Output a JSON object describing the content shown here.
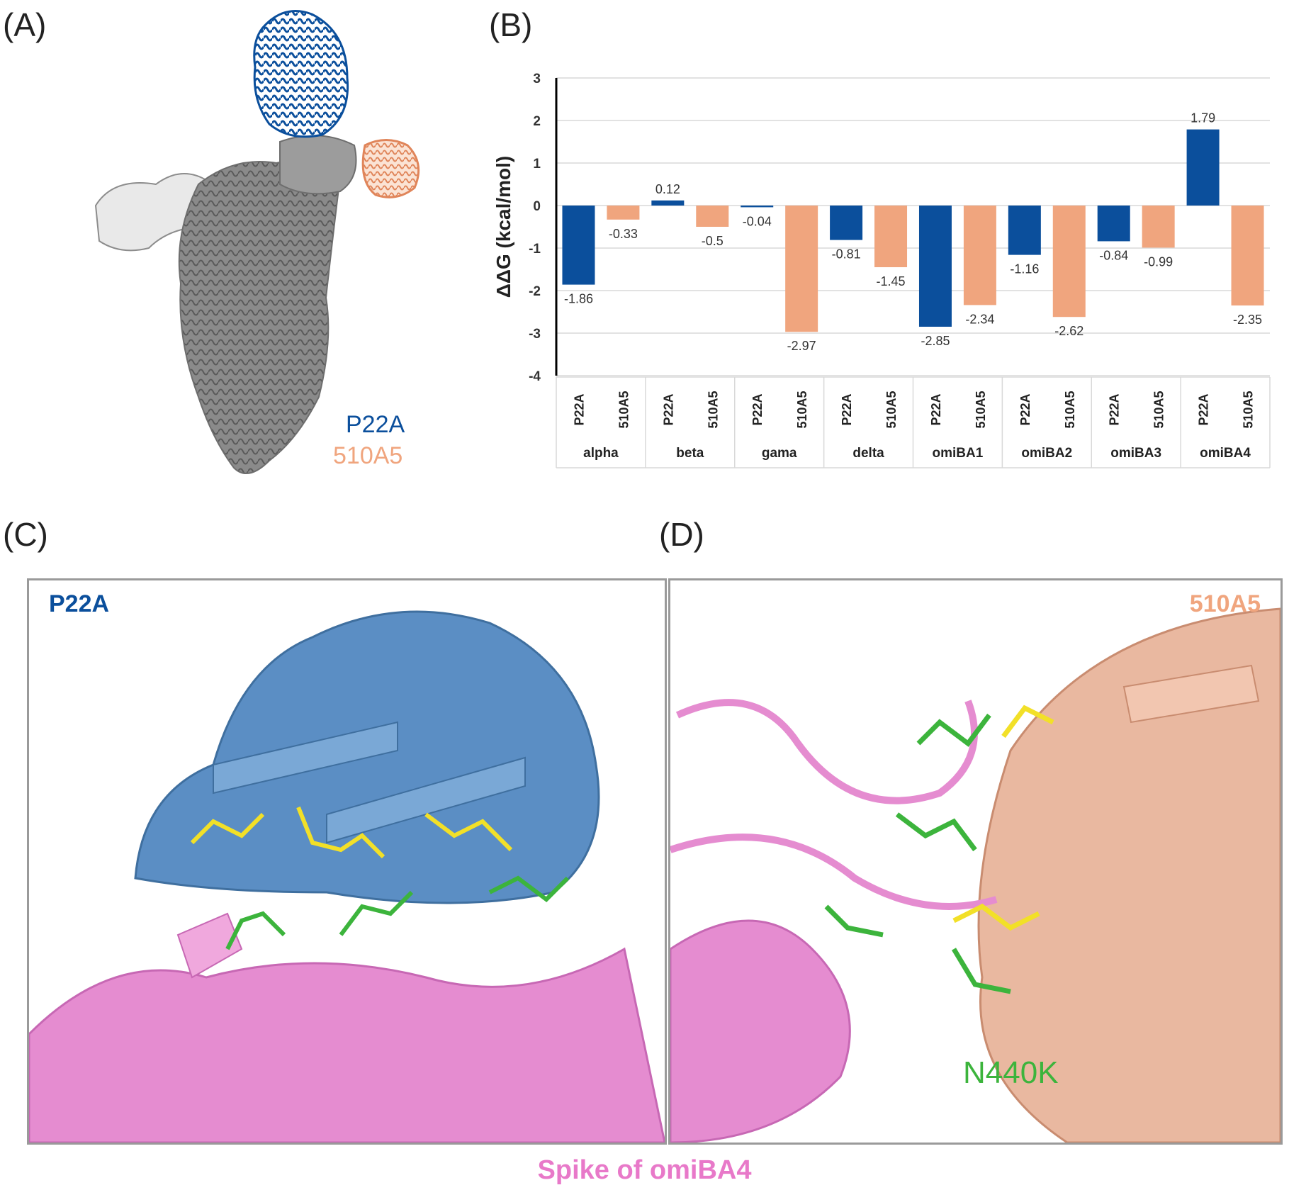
{
  "labels": {
    "a": "(A)",
    "b": "(B)",
    "c": "(C)",
    "d": "(D)"
  },
  "panel_a": {
    "legend": [
      "P22A",
      "510A5"
    ]
  },
  "panel_c": {
    "antibody_label": "P22A"
  },
  "panel_d": {
    "antibody_label": "510A5",
    "mutation_label": "N440K"
  },
  "caption": "Spike of omiBA4",
  "colors": {
    "p22a": "#0b4f9c",
    "a510a5": "#f0a57e",
    "spike": "#e879c9",
    "n440k": "#3cb43c"
  },
  "chart_data": {
    "type": "bar",
    "ylabel": "ΔΔG (kcal/mol)",
    "ylim": [
      -4,
      3
    ],
    "yticks": [
      3,
      2,
      1,
      0,
      -1,
      -2,
      -3,
      -4
    ],
    "grid": true,
    "groups": [
      "alpha",
      "beta",
      "gama",
      "delta",
      "omiBA1",
      "omiBA2",
      "omiBA3",
      "omiBA4"
    ],
    "subcategories": [
      "P22A",
      "510A5"
    ],
    "series": [
      {
        "name": "P22A",
        "color": "#0b4f9c",
        "values": [
          -1.86,
          0.12,
          -0.04,
          -0.81,
          -2.85,
          -1.16,
          -0.84,
          1.79
        ]
      },
      {
        "name": "510A5",
        "color": "#f0a57e",
        "values": [
          -0.33,
          -0.5,
          -2.97,
          -1.45,
          -2.34,
          -2.62,
          -0.99,
          -2.35
        ]
      }
    ]
  }
}
